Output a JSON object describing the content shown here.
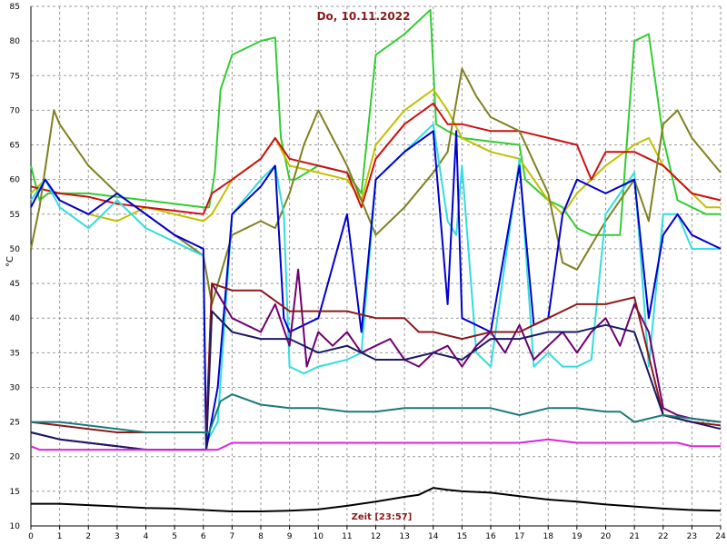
{
  "chart_data": {
    "type": "line",
    "title": "Do, 10.11.2022",
    "xlabel": "Zeit [23:57]",
    "ylabel": "°C",
    "xlim": [
      0,
      24
    ],
    "ylim": [
      10,
      85
    ],
    "xticks": [
      "0",
      "1",
      "2",
      "3",
      "4",
      "5",
      "6",
      "7",
      "8",
      "9",
      "10",
      "11",
      "12",
      "13",
      "14",
      "15",
      "16",
      "17",
      "18",
      "19",
      "20",
      "21",
      "22",
      "23",
      "24"
    ],
    "yticks": [
      "10",
      "15",
      "20",
      "25",
      "30",
      "35",
      "40",
      "45",
      "50",
      "55",
      "60",
      "65",
      "70",
      "75",
      "80",
      "85"
    ],
    "grid": true,
    "colors": {
      "grid": "#999999",
      "axis": "#000000",
      "title": "#8b1a1a"
    },
    "series": [
      {
        "color": "#33cc33",
        "x": [
          0,
          0.3,
          0.6,
          1,
          2,
          3,
          4,
          5,
          6,
          6.2,
          6.4,
          6.6,
          7,
          8,
          8.5,
          8.7,
          9,
          9.2,
          10,
          11,
          11.5,
          12,
          13,
          13.9,
          14.1,
          14.5,
          15,
          16,
          17,
          17.2,
          18,
          18.5,
          19,
          19.5,
          20,
          20.5,
          21,
          21.5,
          22,
          22.5,
          23,
          23.5,
          24
        ],
        "y": [
          62,
          57,
          58,
          58,
          58,
          57.5,
          57,
          56.5,
          56,
          56,
          61,
          73,
          78,
          80,
          80.5,
          66,
          60,
          60,
          62,
          61,
          58,
          78,
          81,
          84.5,
          68,
          67,
          66,
          65.5,
          65,
          60,
          57,
          56,
          53,
          52,
          52,
          52,
          80,
          81,
          66,
          57,
          56,
          55,
          55
        ]
      },
      {
        "color": "#c0c000",
        "x": [
          0,
          0.5,
          1,
          2,
          3,
          4,
          5,
          6,
          6.3,
          7,
          8,
          8.5,
          9,
          10,
          11,
          11.5,
          12,
          13,
          14,
          14.5,
          15,
          16,
          17,
          18,
          18.5,
          19,
          20,
          21,
          21.5,
          22,
          23,
          23.5,
          24
        ],
        "y": [
          58,
          60,
          57,
          55,
          54,
          56,
          55,
          54,
          55,
          60,
          63,
          66,
          62,
          61,
          60,
          57,
          65,
          70,
          73,
          70,
          66,
          64,
          63,
          57,
          55,
          58,
          62,
          65,
          66,
          62,
          58,
          56,
          56
        ]
      },
      {
        "color": "#cc1111",
        "x": [
          0,
          1,
          2,
          3,
          4,
          5,
          6,
          6.3,
          7,
          8,
          8.5,
          9,
          10,
          11,
          11.5,
          12,
          13,
          14,
          14.5,
          15,
          16,
          17,
          18,
          19,
          19.5,
          20,
          21,
          22,
          23,
          24
        ],
        "y": [
          59,
          58,
          57.5,
          56.5,
          56,
          55.5,
          55,
          58,
          60,
          63,
          66,
          63,
          62,
          61,
          56,
          63,
          68,
          71,
          68,
          68,
          67,
          67,
          66,
          65,
          60,
          64,
          64,
          62,
          58,
          57
        ]
      },
      {
        "color": "#808020",
        "x": [
          0,
          0.3,
          0.8,
          1,
          2,
          3,
          4,
          5,
          6,
          6.3,
          7,
          8,
          8.5,
          9,
          9.5,
          10,
          11,
          11.5,
          12,
          13,
          14,
          14.5,
          15,
          15.5,
          16,
          17,
          18,
          18.5,
          19,
          20,
          21,
          21.5,
          22,
          22.5,
          23,
          24
        ],
        "y": [
          50,
          56,
          70,
          68,
          62,
          58,
          55,
          52,
          49,
          42,
          52,
          54,
          53,
          58,
          65,
          70,
          62,
          57,
          52,
          56,
          61,
          64,
          76,
          72,
          69,
          67,
          58,
          48,
          47,
          54,
          60,
          54,
          68,
          70,
          66,
          61
        ]
      },
      {
        "color": "#33dddd",
        "x": [
          0,
          0.5,
          1,
          2,
          3,
          4,
          5,
          6,
          6.1,
          6.5,
          7,
          8,
          8.5,
          8.8,
          9,
          9.5,
          10,
          11,
          11.5,
          12,
          13,
          14,
          14.5,
          14.8,
          15,
          15.5,
          16,
          17,
          17.5,
          18,
          18.5,
          19,
          19.5,
          20,
          21,
          21.5,
          22,
          22.5,
          23,
          24
        ],
        "y": [
          57,
          60,
          56,
          53,
          57,
          53,
          51,
          49,
          22,
          25,
          55,
          60,
          62,
          55,
          33,
          32,
          33,
          34,
          35,
          60,
          64,
          68,
          54,
          52,
          62,
          35,
          33,
          63,
          33,
          35,
          33,
          33,
          34,
          55,
          61,
          33,
          55,
          55,
          50,
          50
        ]
      },
      {
        "color": "#0000cc",
        "x": [
          0,
          0.5,
          1,
          2,
          3,
          4,
          5,
          6,
          6.1,
          6.5,
          7,
          8,
          8.5,
          8.8,
          9,
          10,
          11,
          11.5,
          12,
          13,
          14,
          14.5,
          14.8,
          15,
          16,
          17,
          17.5,
          18,
          18.5,
          19,
          20,
          21,
          21.5,
          22,
          22.5,
          23,
          24
        ],
        "y": [
          56,
          60,
          57,
          55,
          58,
          55,
          52,
          50,
          21,
          30,
          55,
          59,
          62,
          40,
          38,
          40,
          55,
          38,
          60,
          64,
          67,
          42,
          67,
          40,
          38,
          62,
          39,
          40,
          55,
          60,
          58,
          60,
          40,
          52,
          55,
          52,
          50
        ]
      },
      {
        "color": "#700070",
        "x": [
          0,
          1,
          2,
          3,
          4,
          5,
          6,
          6.1,
          6.3,
          7,
          8,
          8.5,
          9,
          9.3,
          9.6,
          10,
          10.5,
          11,
          11.5,
          12,
          12.5,
          13,
          13.5,
          14,
          14.5,
          15,
          15.5,
          16,
          16.5,
          17,
          17.5,
          18,
          18.5,
          19,
          19.5,
          20,
          20.5,
          21,
          21.5,
          22,
          22.5,
          23,
          24
        ],
        "y": [
          23.5,
          22.5,
          22,
          21.5,
          21,
          21,
          21,
          21,
          45,
          40,
          38,
          42,
          36,
          47,
          33,
          38,
          36,
          38,
          35,
          36,
          37,
          34,
          33,
          35,
          36,
          33,
          36,
          38,
          35,
          39,
          34,
          36,
          38,
          35,
          38,
          40,
          36,
          42,
          38,
          27,
          26,
          25.5,
          25
        ]
      },
      {
        "color": "#8b1a1a",
        "x": [
          0,
          1,
          2,
          3,
          4,
          5,
          6,
          6.1,
          6.3,
          7,
          8,
          9,
          10,
          11,
          12,
          13,
          13.5,
          14,
          15,
          16,
          17,
          18,
          19,
          20,
          21,
          22,
          22.5,
          23,
          24
        ],
        "y": [
          25,
          24.5,
          24,
          23.5,
          23.5,
          23.5,
          23.5,
          23.5,
          45,
          44,
          44,
          41,
          41,
          41,
          40,
          40,
          38,
          38,
          37,
          38,
          38,
          40,
          42,
          42,
          43,
          26,
          25.5,
          25,
          24.5
        ]
      },
      {
        "color": "#1a1a66",
        "x": [
          0,
          1,
          2,
          3,
          4,
          5,
          6,
          6.1,
          6.3,
          7,
          8,
          9,
          10,
          11,
          12,
          13,
          14,
          15,
          16,
          17,
          18,
          19,
          20,
          21,
          22,
          22.5,
          23,
          24
        ],
        "y": [
          23.5,
          22.5,
          22,
          21.5,
          21,
          21,
          21,
          21,
          41,
          38,
          37,
          37,
          35,
          36,
          34,
          34,
          35,
          34,
          37,
          37,
          38,
          38,
          39,
          38,
          26,
          25.5,
          25,
          24
        ]
      },
      {
        "color": "#1a7a7a",
        "x": [
          0,
          1,
          2,
          3,
          4,
          5,
          6,
          6.2,
          6.6,
          7,
          8,
          9,
          10,
          11,
          12,
          13,
          14,
          15,
          16,
          17,
          18,
          19,
          20,
          20.5,
          21,
          22,
          23,
          24
        ],
        "y": [
          25,
          25,
          24.5,
          24,
          23.5,
          23.5,
          23.5,
          23.5,
          28,
          29,
          27.5,
          27,
          27,
          26.5,
          26.5,
          27,
          27,
          27,
          27,
          26,
          27,
          27,
          26.5,
          26.5,
          25,
          26,
          25.5,
          25
        ]
      },
      {
        "color": "#dd22dd",
        "x": [
          0,
          0.3,
          1,
          2,
          3,
          4,
          5,
          6,
          6.5,
          7,
          8,
          9,
          10,
          11,
          12,
          13,
          14,
          15,
          16,
          17,
          18,
          19,
          20,
          21,
          22,
          22.5,
          23,
          24
        ],
        "y": [
          21.5,
          21,
          21,
          21,
          21,
          21,
          21,
          21,
          21,
          22,
          22,
          22,
          22,
          22,
          22,
          22,
          22,
          22,
          22,
          22,
          22.5,
          22,
          22,
          22,
          22,
          22,
          21.5,
          21.5
        ]
      },
      {
        "color": "#000000",
        "x": [
          0,
          1,
          2,
          3,
          4,
          5,
          6,
          7,
          8,
          9,
          10,
          11,
          12,
          13,
          13.5,
          14,
          14.5,
          15,
          16,
          17,
          18,
          19,
          20,
          21,
          22,
          23,
          24
        ],
        "y": [
          13.2,
          13.2,
          13,
          12.8,
          12.6,
          12.5,
          12.3,
          12.1,
          12.1,
          12.2,
          12.4,
          12.9,
          13.5,
          14.2,
          14.5,
          15.5,
          15.2,
          15,
          14.8,
          14.3,
          13.8,
          13.5,
          13.1,
          12.8,
          12.5,
          12.3,
          12.2
        ]
      }
    ]
  }
}
